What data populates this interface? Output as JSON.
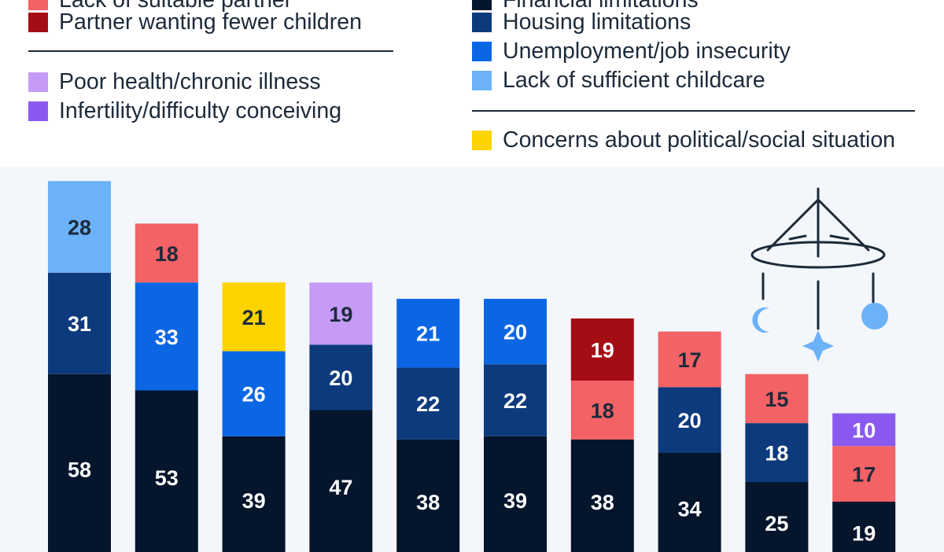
{
  "legend": {
    "groups": [
      [
        {
          "label": "Lack of suitable partner",
          "color": "#f36265"
        },
        {
          "label": "Partner wanting fewer children",
          "color": "#a50d15"
        }
      ],
      [
        {
          "label": "Poor health/chronic illness",
          "color": "#c59bf7"
        },
        {
          "label": "Infertility/difficulty conceiving",
          "color": "#8a5af0"
        }
      ],
      [
        {
          "label": "Financial limitations",
          "color": "#04152c"
        },
        {
          "label": "Housing limitations",
          "color": "#0d3a7c"
        },
        {
          "label": "Unemployment/job insecurity",
          "color": "#0b66e4"
        },
        {
          "label": "Lack of sufficient childcare",
          "color": "#6cb2f8"
        }
      ],
      [
        {
          "label": "Concerns about political/social situation",
          "color": "#fdd300"
        }
      ]
    ]
  },
  "chart_data": {
    "type": "bar",
    "stacked": true,
    "grid": false,
    "ylim": [
      0,
      130
    ],
    "colors": {
      "Financial limitations": "#04152c",
      "Housing limitations": "#0d3a7c",
      "Unemployment/job insecurity": "#0b66e4",
      "Lack of sufficient childcare": "#6cb2f8",
      "Lack of suitable partner": "#f36265",
      "Partner wanting fewer children": "#a50d15",
      "Poor health/chronic illness": "#c59bf7",
      "Infertility/difficulty conceiving": "#8a5af0",
      "Concerns about political/social situation": "#fdd300"
    },
    "bars": [
      [
        {
          "series": "Financial limitations",
          "value": 58
        },
        {
          "series": "Housing limitations",
          "value": 31
        },
        {
          "series": "Lack of sufficient childcare",
          "value": 28
        }
      ],
      [
        {
          "series": "Financial limitations",
          "value": 53
        },
        {
          "series": "Unemployment/job insecurity",
          "value": 33
        },
        {
          "series": "Lack of suitable partner",
          "value": 18
        }
      ],
      [
        {
          "series": "Financial limitations",
          "value": 39
        },
        {
          "series": "Unemployment/job insecurity",
          "value": 26
        },
        {
          "series": "Concerns about political/social situation",
          "value": 21
        }
      ],
      [
        {
          "series": "Financial limitations",
          "value": 47
        },
        {
          "series": "Housing limitations",
          "value": 20
        },
        {
          "series": "Poor health/chronic illness",
          "value": 19
        }
      ],
      [
        {
          "series": "Financial limitations",
          "value": 38
        },
        {
          "series": "Housing limitations",
          "value": 22
        },
        {
          "series": "Unemployment/job insecurity",
          "value": 21
        }
      ],
      [
        {
          "series": "Financial limitations",
          "value": 39
        },
        {
          "series": "Housing limitations",
          "value": 22
        },
        {
          "series": "Unemployment/job insecurity",
          "value": 20
        }
      ],
      [
        {
          "series": "Financial limitations",
          "value": 38
        },
        {
          "series": "Lack of suitable partner",
          "value": 18
        },
        {
          "series": "Partner wanting fewer children",
          "value": 19
        }
      ],
      [
        {
          "series": "Financial limitations",
          "value": 34
        },
        {
          "series": "Housing limitations",
          "value": 20
        },
        {
          "series": "Lack of suitable partner",
          "value": 17
        }
      ],
      [
        {
          "series": "Financial limitations",
          "value": 25
        },
        {
          "series": "Housing limitations",
          "value": 18
        },
        {
          "series": "Lack of suitable partner",
          "value": 15
        }
      ],
      [
        {
          "series": "Financial limitations",
          "value": 19
        },
        {
          "series": "Lack of suitable partner",
          "value": 17
        },
        {
          "series": "Infertility/difficulty conceiving",
          "value": 10
        }
      ]
    ]
  },
  "decoration": {
    "icon": "baby-mobile-icon",
    "line_color": "#1c2a3a",
    "accent_color": "#6cb2f8"
  }
}
